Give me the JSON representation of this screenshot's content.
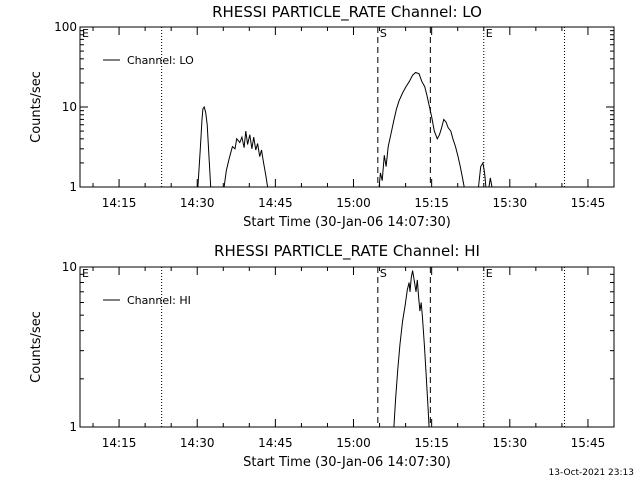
{
  "chart_data": [
    {
      "type": "line",
      "title": "RHESSI PARTICLE_RATE Channel: LO",
      "xlabel": "Start Time (30-Jan-06 14:07:30)",
      "ylabel": "Counts/sec",
      "yscale": "log",
      "ylim": [
        1,
        100
      ],
      "xlim": [
        "14:07:30",
        "15:50:00"
      ],
      "x_ticks": [
        "14:15",
        "14:30",
        "14:45",
        "15:00",
        "15:15",
        "15:30",
        "15:45"
      ],
      "y_ticks": [
        "1",
        "10",
        "100"
      ],
      "legend": "top-left",
      "series": [
        {
          "name": "Channel: LO",
          "segments": [
            [
              [
                "14:30:08",
                1
              ],
              [
                "14:30:35",
                3.0
              ],
              [
                "14:30:55",
                7.0
              ],
              [
                "14:31:05",
                9.5
              ],
              [
                "14:31:20",
                10
              ],
              [
                "14:31:38",
                8.5
              ],
              [
                "14:31:55",
                6
              ],
              [
                "14:32:15",
                2.5
              ],
              [
                "14:32:35",
                1
              ]
            ],
            [
              [
                "14:35:10",
                1
              ],
              [
                "14:35:35",
                1.6
              ],
              [
                "14:36:05",
                2.2
              ],
              [
                "14:36:45",
                3.2
              ],
              [
                "14:37:15",
                3.0
              ],
              [
                "14:37:35",
                4.0
              ],
              [
                "14:38:10",
                3.6
              ],
              [
                "14:38:35",
                4.2
              ],
              [
                "14:39:00",
                3.1
              ],
              [
                "14:39:20",
                5.0
              ],
              [
                "14:39:40",
                3.4
              ],
              [
                "14:40:05",
                4.5
              ],
              [
                "14:40:30",
                3.0
              ],
              [
                "14:40:50",
                4.2
              ],
              [
                "14:41:15",
                2.9
              ],
              [
                "14:41:35",
                3.5
              ],
              [
                "14:42:00",
                2.4
              ],
              [
                "14:42:20",
                2.9
              ],
              [
                "14:42:45",
                2.0
              ],
              [
                "14:43:10",
                1.4
              ],
              [
                "14:43:30",
                1
              ]
            ],
            [
              [
                "15:04:55",
                1
              ],
              [
                "15:05:10",
                1.5
              ],
              [
                "15:05:30",
                1.2
              ],
              [
                "15:05:55",
                2.5
              ],
              [
                "15:06:15",
                1.8
              ],
              [
                "15:06:40",
                3.2
              ],
              [
                "15:07:10",
                4.5
              ],
              [
                "15:07:40",
                6.5
              ],
              [
                "15:08:15",
                9.5
              ],
              [
                "15:08:45",
                12
              ],
              [
                "15:09:25",
                15
              ],
              [
                "15:10:05",
                18
              ],
              [
                "15:10:45",
                21
              ],
              [
                "15:11:20",
                25
              ],
              [
                "15:11:55",
                27
              ],
              [
                "15:12:35",
                26
              ],
              [
                "15:13:05",
                21
              ],
              [
                "15:13:40",
                18
              ],
              [
                "15:14:05",
                14
              ],
              [
                "15:14:35",
                10
              ],
              [
                "15:15:00",
                7.5
              ],
              [
                "15:15:30",
                5
              ],
              [
                "15:16:05",
                4
              ],
              [
                "15:16:30",
                4.5
              ],
              [
                "15:16:55",
                5.5
              ],
              [
                "15:17:20",
                7
              ],
              [
                "15:17:45",
                6.5
              ],
              [
                "15:18:10",
                5.5
              ],
              [
                "15:18:40",
                5
              ],
              [
                "15:19:05",
                4
              ],
              [
                "15:19:35",
                3.2
              ],
              [
                "15:20:00",
                2.5
              ],
              [
                "15:20:30",
                1.8
              ],
              [
                "15:20:55",
                1.3
              ],
              [
                "15:21:15",
                1
              ]
            ],
            [
              [
                "15:24:00",
                1
              ],
              [
                "15:24:25",
                1.8
              ],
              [
                "15:24:50",
                2.0
              ],
              [
                "15:25:10",
                1.5
              ],
              [
                "15:25:25",
                1
              ]
            ],
            [
              [
                "15:26:00",
                1
              ],
              [
                "15:26:15",
                1.3
              ],
              [
                "15:26:35",
                1
              ]
            ]
          ]
        }
      ],
      "annotations": [
        {
          "text": "E",
          "x": "14:07:30",
          "line": "none"
        },
        {
          "text": "",
          "x": "14:23:10",
          "line": "dotted"
        },
        {
          "text": "S",
          "x": "15:04:40",
          "line": "dashed"
        },
        {
          "text": "",
          "x": "15:14:45",
          "line": "dashed"
        },
        {
          "text": "E",
          "x": "15:25:00",
          "line": "dotted"
        },
        {
          "text": "",
          "x": "15:40:30",
          "line": "dotted"
        }
      ]
    },
    {
      "type": "line",
      "title": "RHESSI PARTICLE_RATE Channel: HI",
      "xlabel": "Start Time (30-Jan-06 14:07:30)",
      "ylabel": "Counts/sec",
      "yscale": "log",
      "ylim": [
        1,
        10
      ],
      "xlim": [
        "14:07:30",
        "15:50:00"
      ],
      "x_ticks": [
        "14:15",
        "14:30",
        "14:45",
        "15:00",
        "15:15",
        "15:30",
        "15:45"
      ],
      "y_ticks": [
        "1",
        "10"
      ],
      "legend": "top-left",
      "series": [
        {
          "name": "Channel: HI",
          "segments": [
            [
              [
                "15:07:45",
                1
              ],
              [
                "15:08:05",
                1.5
              ],
              [
                "15:08:30",
                2.3
              ],
              [
                "15:08:55",
                3.3
              ],
              [
                "15:09:25",
                4.6
              ],
              [
                "15:09:55",
                5.8
              ],
              [
                "15:10:20",
                7.2
              ],
              [
                "15:10:40",
                8.0
              ],
              [
                "15:10:50",
                7.0
              ],
              [
                "15:11:05",
                8.6
              ],
              [
                "15:11:20",
                9.5
              ],
              [
                "15:11:40",
                8.2
              ],
              [
                "15:12:00",
                7.0
              ],
              [
                "15:12:15",
                8.3
              ],
              [
                "15:12:30",
                6.5
              ],
              [
                "15:12:45",
                5.3
              ],
              [
                "15:13:00",
                6.0
              ],
              [
                "15:13:15",
                4.8
              ],
              [
                "15:13:35",
                3.3
              ],
              [
                "15:13:55",
                2.2
              ],
              [
                "15:14:15",
                1.4
              ],
              [
                "15:14:30",
                1
              ]
            ]
          ]
        }
      ],
      "annotations": [
        {
          "text": "E",
          "x": "14:07:30",
          "line": "none"
        },
        {
          "text": "",
          "x": "14:23:10",
          "line": "dotted"
        },
        {
          "text": "S",
          "x": "15:04:40",
          "line": "dashed"
        },
        {
          "text": "",
          "x": "15:14:45",
          "line": "dashed"
        },
        {
          "text": "E",
          "x": "15:25:00",
          "line": "dotted"
        },
        {
          "text": "",
          "x": "15:40:30",
          "line": "dotted"
        }
      ]
    }
  ],
  "footer": {
    "timestamp": "13-Oct-2021 23:13"
  }
}
